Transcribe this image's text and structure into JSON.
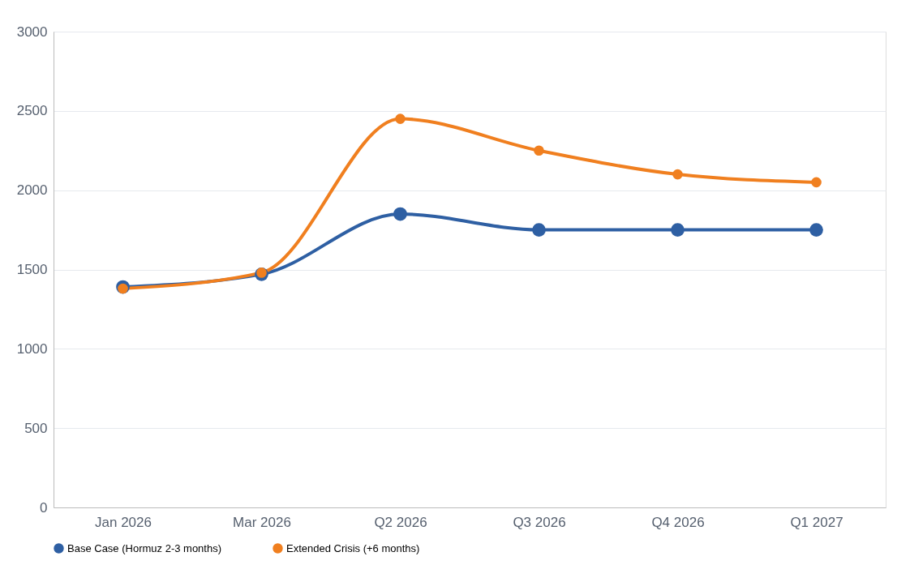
{
  "chart_data": {
    "type": "line",
    "categories": [
      "Jan 2026",
      "Mar 2026",
      "Q2 2026",
      "Q3 2026",
      "Q4 2026",
      "Q1 2027"
    ],
    "series": [
      {
        "name": "Base Case (Hormuz 2-3 months)",
        "color": "#2e5fa3",
        "values": [
          1390,
          1470,
          1850,
          1750,
          1750,
          1750
        ]
      },
      {
        "name": "Extended Crisis (+6 months)",
        "color": "#f07f1f",
        "values": [
          1380,
          1480,
          2450,
          2250,
          2100,
          2050
        ]
      }
    ],
    "ylim": [
      0,
      3000
    ],
    "yticks": [
      0,
      500,
      1000,
      1500,
      2000,
      2500,
      3000
    ],
    "grid": "y",
    "legend": "bottom",
    "marker": "circle",
    "line_style": "solid"
  }
}
